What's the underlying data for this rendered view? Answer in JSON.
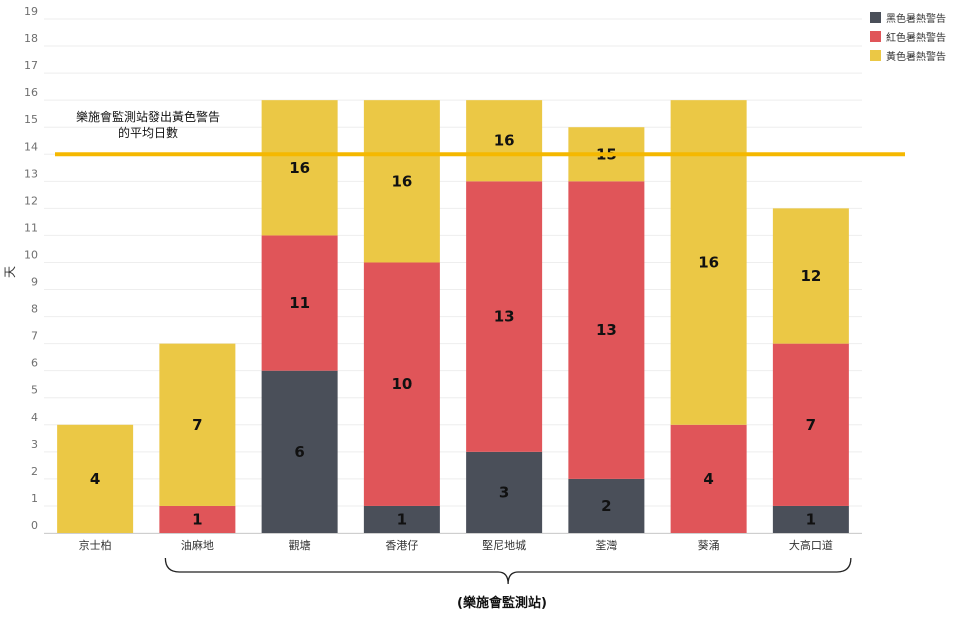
{
  "chart_data": {
    "type": "bar",
    "stacked": true,
    "categories": [
      "京士柏",
      "油麻地",
      "觀塘",
      "香港仔",
      "堅尼地城",
      "荃灣",
      "葵涌",
      "大高口道"
    ],
    "series": [
      {
        "name": "黑色暑熱警告",
        "color": "#4a4f59",
        "values": [
          0,
          0,
          6,
          1,
          3,
          2,
          0,
          1
        ]
      },
      {
        "name": "紅色暑熱警告",
        "color": "#e05559",
        "values": [
          0,
          1,
          5,
          9,
          10,
          11,
          4,
          6
        ]
      },
      {
        "name": "黃色暑熱警告",
        "color": "#ebc845",
        "values": [
          4,
          6,
          5,
          6,
          3,
          2,
          12,
          5
        ]
      }
    ],
    "data_labels": [
      [
        null,
        null,
        "6",
        "1",
        "3",
        "2",
        null,
        "1"
      ],
      [
        null,
        "1",
        "11",
        "10",
        "13",
        "13",
        "4",
        "7"
      ],
      [
        "4",
        "7",
        "16",
        "16",
        "16",
        "15",
        "16",
        "12"
      ]
    ],
    "ylabel": "天",
    "xlabel": "(樂施會監測站)",
    "ylim": [
      0,
      19
    ],
    "yticks": [
      0,
      1,
      2,
      3,
      4,
      5,
      6,
      7,
      8,
      9,
      10,
      11,
      12,
      13,
      14,
      15,
      16,
      17,
      18,
      19
    ],
    "grid": true,
    "legend_position": "top-right",
    "reference_line": {
      "value": 14,
      "color": "#f5b800",
      "label_line1": "樂施會監測站發出黃色警告",
      "label_line2": "的平均日數"
    },
    "bracket": {
      "from_category": "油麻地",
      "to_category": "大高口道"
    }
  }
}
